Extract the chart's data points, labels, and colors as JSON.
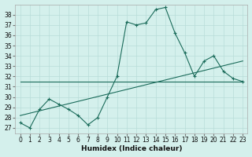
{
  "xlabel": "Humidex (Indice chaleur)",
  "bg_color": "#d4f0ec",
  "line_color": "#1a6b5a",
  "grid_color": "#b8ddd8",
  "xlim": [
    -0.5,
    23.5
  ],
  "ylim": [
    26.5,
    39.0
  ],
  "yticks": [
    27,
    28,
    29,
    30,
    31,
    32,
    33,
    34,
    35,
    36,
    37,
    38
  ],
  "xticks": [
    0,
    1,
    2,
    3,
    4,
    5,
    6,
    7,
    8,
    9,
    10,
    11,
    12,
    13,
    14,
    15,
    16,
    17,
    18,
    19,
    20,
    21,
    22,
    23
  ],
  "line1_x": [
    0,
    1,
    2,
    3,
    4,
    5,
    6,
    7,
    8,
    9,
    10,
    11,
    12,
    13,
    14,
    15,
    16,
    17,
    18,
    19,
    20,
    21,
    22,
    23
  ],
  "line1_y": [
    27.5,
    27.0,
    28.8,
    29.8,
    29.3,
    28.8,
    28.2,
    27.3,
    28.0,
    30.0,
    32.0,
    37.3,
    37.0,
    37.2,
    38.5,
    38.7,
    36.2,
    34.3,
    32.0,
    33.5,
    34.0,
    32.5,
    31.8,
    31.5
  ],
  "line2_x": [
    0,
    23
  ],
  "line2_y": [
    31.5,
    31.5
  ],
  "line3_x": [
    0,
    23
  ],
  "line3_y": [
    28.2,
    33.5
  ]
}
